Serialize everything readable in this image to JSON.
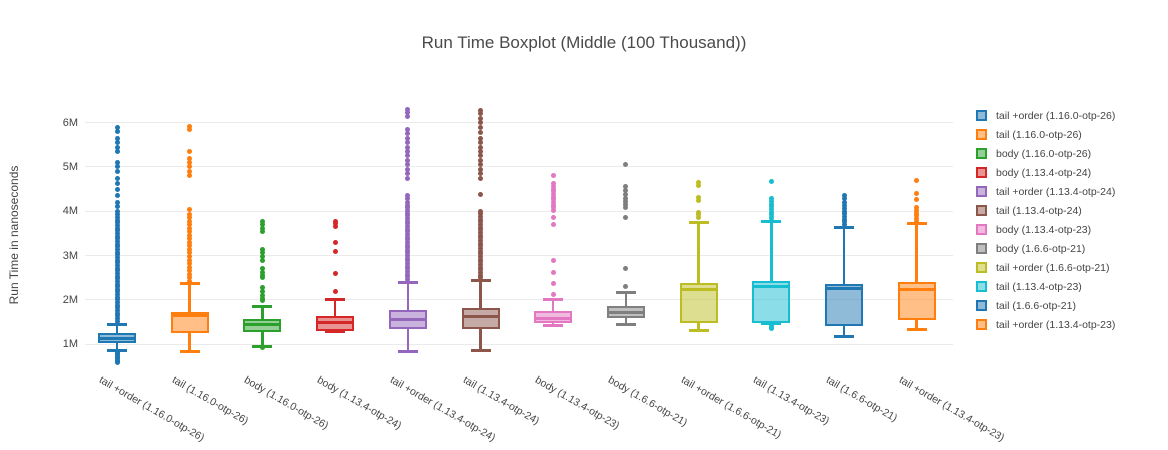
{
  "title": "Run Time Boxplot (Middle (100 Thousand))",
  "chart_data": {
    "type": "boxplot",
    "title": "Run Time Boxplot (Middle (100 Thousand))",
    "xlabel": "",
    "ylabel": "Run Time in nanoseconds",
    "y_unit": "millions of nanoseconds",
    "ylim": [
      0.5,
      6.45
    ],
    "ytick_values": [
      1,
      2,
      3,
      4,
      5,
      6
    ],
    "ytick_labels": [
      "1M",
      "2M",
      "3M",
      "4M",
      "5M",
      "6M"
    ],
    "grid": true,
    "legend_position": "right",
    "categories": [
      "tail +order (1.16.0-otp-26)",
      "tail (1.16.0-otp-26)",
      "body (1.16.0-otp-26)",
      "body (1.13.4-otp-24)",
      "tail +order (1.13.4-otp-24)",
      "tail (1.13.4-otp-24)",
      "body (1.13.4-otp-23)",
      "body (1.6.6-otp-21)",
      "tail +order (1.6.6-otp-21)",
      "tail (1.13.4-otp-23)",
      "tail (1.6.6-otp-21)",
      "tail +order (1.13.4-otp-23)"
    ],
    "series": [
      {
        "name": "tail +order (1.16.0-otp-26)",
        "color": "#1f77b4",
        "whisker_low": 0.87,
        "q1": 1.04,
        "median": 1.14,
        "q3": 1.26,
        "whisker_high": 1.45,
        "outliers_low": [
          0.58,
          0.61,
          0.64,
          0.67,
          0.7,
          0.73,
          0.76,
          0.79,
          0.82
        ],
        "outliers_high": [
          1.52,
          1.58,
          1.64,
          1.7,
          1.76,
          1.82,
          1.88,
          1.94,
          2.0,
          2.06,
          2.12,
          2.18,
          2.24,
          2.3,
          2.36,
          2.42,
          2.48,
          2.54,
          2.6,
          2.66,
          2.72,
          2.78,
          2.84,
          2.9,
          2.96,
          3.02,
          3.08,
          3.14,
          3.2,
          3.26,
          3.32,
          3.38,
          3.44,
          3.5,
          3.56,
          3.62,
          3.68,
          3.74,
          3.8,
          3.86,
          3.92,
          4.0,
          4.1,
          4.2,
          4.35,
          4.5,
          4.62,
          4.75,
          4.9,
          5.0,
          5.1,
          5.35,
          5.45,
          5.55,
          5.65,
          5.8,
          5.88
        ]
      },
      {
        "name": "tail (1.16.0-otp-26)",
        "color": "#ff7f0e",
        "whisker_low": 0.84,
        "q1": 1.26,
        "median": 1.66,
        "q3": 1.72,
        "whisker_high": 2.38,
        "outliers_low": [],
        "outliers_high": [
          2.42,
          2.5,
          2.58,
          2.66,
          2.74,
          2.82,
          2.9,
          2.98,
          3.06,
          3.14,
          3.22,
          3.3,
          3.38,
          3.46,
          3.54,
          3.62,
          3.7,
          3.78,
          3.86,
          3.92,
          4.05,
          4.8,
          4.9,
          5.0,
          5.1,
          5.2,
          5.35,
          5.85,
          5.92
        ]
      },
      {
        "name": "body (1.16.0-otp-26)",
        "color": "#2ca02c",
        "whisker_low": 0.95,
        "q1": 1.27,
        "median": 1.44,
        "q3": 1.57,
        "whisker_high": 1.85,
        "outliers_low": [
          0.93
        ],
        "outliers_high": [
          1.98,
          2.04,
          2.1,
          2.2,
          2.28,
          2.5,
          2.56,
          2.62,
          2.7,
          2.9,
          2.98,
          3.06,
          3.14,
          3.55,
          3.62,
          3.7,
          3.78
        ]
      },
      {
        "name": "body (1.13.4-otp-24)",
        "color": "#d62728",
        "whisker_low": 1.28,
        "q1": 1.3,
        "median": 1.5,
        "q3": 1.64,
        "whisker_high": 2.0,
        "outliers_low": [],
        "outliers_high": [
          2.2,
          2.6,
          3.1,
          3.3,
          3.65,
          3.72,
          3.78
        ]
      },
      {
        "name": "tail +order (1.13.4-otp-24)",
        "color": "#9467bd",
        "whisker_low": 0.83,
        "q1": 1.35,
        "median": 1.55,
        "q3": 1.78,
        "whisker_high": 2.4,
        "outliers_low": [],
        "outliers_high": [
          2.46,
          2.52,
          2.58,
          2.64,
          2.7,
          2.76,
          2.82,
          2.88,
          2.94,
          3.0,
          3.06,
          3.12,
          3.18,
          3.24,
          3.3,
          3.36,
          3.42,
          3.48,
          3.54,
          3.6,
          3.66,
          3.72,
          3.78,
          3.84,
          3.9,
          3.96,
          4.02,
          4.08,
          4.14,
          4.2,
          4.28,
          4.35,
          4.75,
          4.85,
          4.95,
          5.05,
          5.15,
          5.25,
          5.35,
          5.45,
          5.55,
          5.65,
          5.75,
          5.85,
          6.15,
          6.22,
          6.3
        ]
      },
      {
        "name": "tail (1.13.4-otp-24)",
        "color": "#8c564b",
        "whisker_low": 0.85,
        "q1": 1.35,
        "median": 1.63,
        "q3": 1.82,
        "whisker_high": 2.44,
        "outliers_low": [],
        "outliers_high": [
          2.5,
          2.56,
          2.62,
          2.68,
          2.74,
          2.8,
          2.86,
          2.92,
          2.98,
          3.04,
          3.1,
          3.16,
          3.22,
          3.28,
          3.34,
          3.4,
          3.46,
          3.52,
          3.58,
          3.64,
          3.7,
          3.76,
          3.82,
          3.88,
          3.94,
          4.0,
          4.37,
          4.75,
          4.85,
          4.95,
          5.05,
          5.15,
          5.25,
          5.35,
          5.45,
          5.55,
          5.65,
          5.78,
          5.9,
          6.0,
          6.1,
          6.2,
          6.28
        ]
      },
      {
        "name": "body (1.13.4-otp-23)",
        "color": "#e377c2",
        "whisker_low": 1.42,
        "q1": 1.48,
        "median": 1.58,
        "q3": 1.75,
        "whisker_high": 2.02,
        "outliers_low": [],
        "outliers_high": [
          2.13,
          2.38,
          2.62,
          2.88,
          3.7,
          3.85,
          4.02,
          4.08,
          4.14,
          4.2,
          4.26,
          4.32,
          4.38,
          4.44,
          4.5,
          4.56,
          4.62,
          4.8
        ]
      },
      {
        "name": "body (1.6.6-otp-21)",
        "color": "#7f7f7f",
        "whisker_low": 1.44,
        "q1": 1.59,
        "median": 1.72,
        "q3": 1.86,
        "whisker_high": 2.16,
        "outliers_low": [],
        "outliers_high": [
          2.3,
          2.7,
          3.85,
          4.08,
          4.15,
          4.22,
          4.3,
          4.38,
          4.46,
          4.55,
          5.05
        ]
      },
      {
        "name": "tail +order (1.6.6-otp-21)",
        "color": "#bcbd22",
        "whisker_low": 1.32,
        "q1": 1.48,
        "median": 2.24,
        "q3": 2.38,
        "whisker_high": 3.75,
        "outliers_low": [],
        "outliers_high": [
          3.85,
          3.92,
          3.98,
          4.25,
          4.32,
          4.58,
          4.65
        ]
      },
      {
        "name": "tail (1.13.4-otp-23)",
        "color": "#17becf",
        "whisker_low": 1.48,
        "q1": 1.49,
        "median": 2.3,
        "q3": 2.42,
        "whisker_high": 3.78,
        "outliers_low": [
          1.36,
          1.39,
          1.42
        ],
        "outliers_high": [
          3.8,
          3.86,
          3.92,
          3.98,
          4.04,
          4.1,
          4.16,
          4.22,
          4.3,
          4.67
        ]
      },
      {
        "name": "tail (1.6.6-otp-21)",
        "color": "#1f77b4",
        "whisker_low": 1.17,
        "q1": 1.42,
        "median": 2.26,
        "q3": 2.36,
        "whisker_high": 3.64,
        "outliers_low": [],
        "outliers_high": [
          3.7,
          3.76,
          3.82,
          3.88,
          3.94,
          4.0,
          4.06,
          4.12,
          4.2,
          4.3,
          4.35
        ]
      },
      {
        "name": "tail +order (1.13.4-otp-23)",
        "color": "#ff7f0e",
        "whisker_low": 1.33,
        "q1": 1.55,
        "median": 2.23,
        "q3": 2.41,
        "whisker_high": 3.72,
        "outliers_low": [],
        "outliers_high": [
          3.78,
          3.84,
          3.9,
          3.96,
          4.02,
          4.08,
          4.26,
          4.4,
          4.7
        ]
      }
    ]
  }
}
